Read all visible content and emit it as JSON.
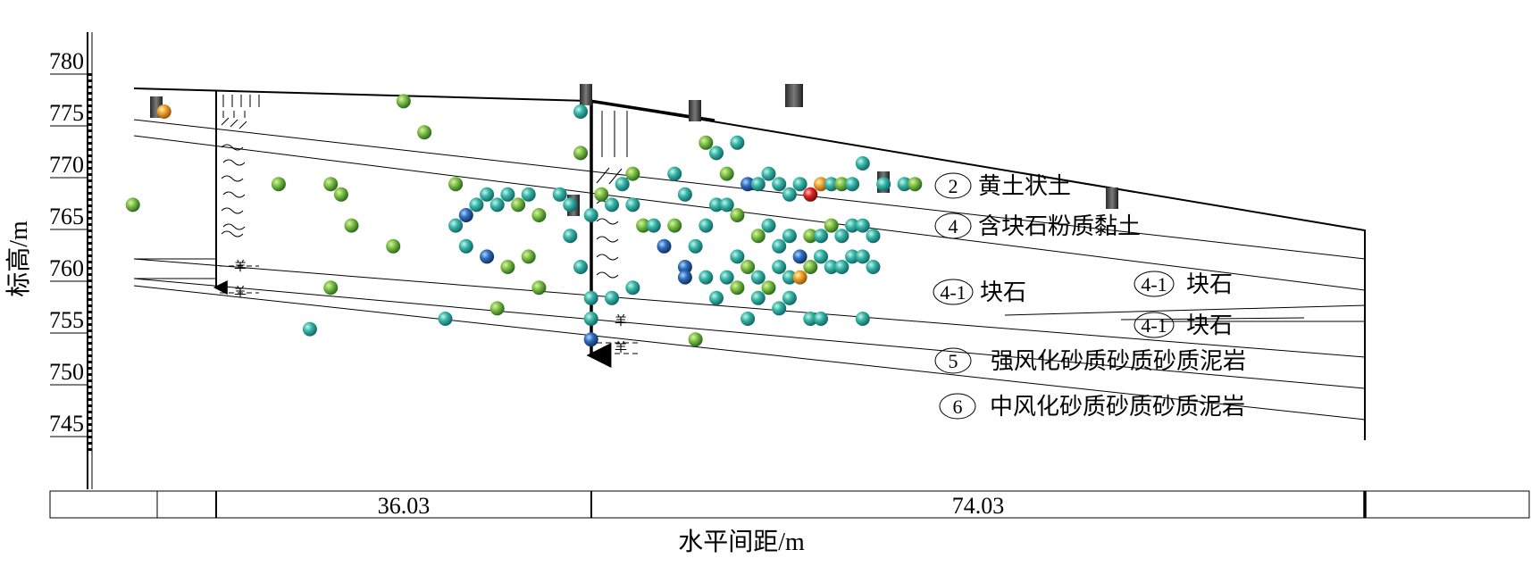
{
  "chart_data": {
    "type": "scatter",
    "ylabel": "标高/m",
    "xlabel": "水平间距/m",
    "yticks": [
      780,
      775,
      770,
      765,
      760,
      755,
      750,
      745
    ],
    "ylim": [
      740,
      782
    ],
    "distances": [
      {
        "label": "36.03",
        "from": 0,
        "to": 36.03
      },
      {
        "label": "74.03",
        "from": 36.03,
        "to": 110.06
      }
    ],
    "layers": [
      {
        "code": "2",
        "label": "黄土状土"
      },
      {
        "code": "4",
        "label": "含块石粉质黏土"
      },
      {
        "code": "4-1",
        "label": "块石"
      },
      {
        "code": "4-1",
        "label": "块石"
      },
      {
        "code": "4-1",
        "label": "块石"
      },
      {
        "code": "5",
        "label": "强风化砂质砂质砂质泥岩"
      },
      {
        "code": "6",
        "label": "中风化砂质砂质砂质泥岩"
      }
    ],
    "points": [
      [
        -8,
        766,
        "g"
      ],
      [
        -5,
        775,
        "o"
      ],
      [
        18,
        776,
        "g"
      ],
      [
        20,
        773,
        "g"
      ],
      [
        6,
        768,
        "g"
      ],
      [
        11,
        768,
        "g"
      ],
      [
        12,
        767,
        "g"
      ],
      [
        13,
        764,
        "g"
      ],
      [
        17,
        762,
        "g"
      ],
      [
        11,
        758,
        "g"
      ],
      [
        9,
        754,
        "c"
      ],
      [
        23,
        768,
        "g"
      ],
      [
        23,
        764,
        "c"
      ],
      [
        24,
        765,
        "b"
      ],
      [
        25,
        766,
        "c"
      ],
      [
        26,
        767,
        "c"
      ],
      [
        27,
        766,
        "c"
      ],
      [
        28,
        767,
        "c"
      ],
      [
        29,
        766,
        "g"
      ],
      [
        30,
        767,
        "c"
      ],
      [
        31,
        765,
        "g"
      ],
      [
        24,
        762,
        "c"
      ],
      [
        26,
        761,
        "b"
      ],
      [
        28,
        760,
        "g"
      ],
      [
        30,
        761,
        "g"
      ],
      [
        31,
        758,
        "g"
      ],
      [
        22,
        755,
        "c"
      ],
      [
        27,
        756,
        "g"
      ],
      [
        33,
        767,
        "c"
      ],
      [
        34,
        766,
        "c"
      ],
      [
        34,
        763,
        "c"
      ],
      [
        35,
        760,
        "c"
      ],
      [
        35,
        775,
        "c"
      ],
      [
        35,
        771,
        "g"
      ],
      [
        36,
        753,
        "b"
      ],
      [
        36,
        765,
        "c"
      ],
      [
        37,
        767,
        "g"
      ],
      [
        38,
        766,
        "c"
      ],
      [
        39,
        768,
        "c"
      ],
      [
        40,
        766,
        "c"
      ],
      [
        41,
        764,
        "g"
      ],
      [
        42,
        764,
        "c"
      ],
      [
        43,
        762,
        "b"
      ],
      [
        44,
        764,
        "g"
      ],
      [
        45,
        760,
        "b"
      ],
      [
        46,
        762,
        "c"
      ],
      [
        47,
        764,
        "c"
      ],
      [
        48,
        766,
        "c"
      ],
      [
        36,
        757,
        "c"
      ],
      [
        36,
        755,
        "c"
      ],
      [
        38,
        757,
        "c"
      ],
      [
        40,
        758,
        "c"
      ],
      [
        45,
        759,
        "b"
      ],
      [
        46,
        753,
        "g"
      ],
      [
        47,
        759,
        "c"
      ],
      [
        47,
        772,
        "g"
      ],
      [
        48,
        771,
        "c"
      ],
      [
        49,
        769,
        "g"
      ],
      [
        50,
        772,
        "c"
      ],
      [
        51,
        768,
        "b"
      ],
      [
        52,
        768,
        "c"
      ],
      [
        53,
        769,
        "c"
      ],
      [
        54,
        768,
        "c"
      ],
      [
        55,
        767,
        "c"
      ],
      [
        56,
        768,
        "c"
      ],
      [
        57,
        767,
        "r"
      ],
      [
        58,
        768,
        "o"
      ],
      [
        59,
        768,
        "c"
      ],
      [
        60,
        768,
        "g"
      ],
      [
        61,
        768,
        "c"
      ],
      [
        62,
        770,
        "c"
      ],
      [
        64,
        768,
        "c"
      ],
      [
        49,
        766,
        "c"
      ],
      [
        50,
        765,
        "g"
      ],
      [
        52,
        763,
        "g"
      ],
      [
        53,
        764,
        "c"
      ],
      [
        54,
        762,
        "c"
      ],
      [
        55,
        763,
        "c"
      ],
      [
        56,
        761,
        "b"
      ],
      [
        57,
        763,
        "g"
      ],
      [
        58,
        763,
        "c"
      ],
      [
        59,
        764,
        "g"
      ],
      [
        60,
        763,
        "c"
      ],
      [
        61,
        764,
        "c"
      ],
      [
        62,
        764,
        "c"
      ],
      [
        63,
        763,
        "c"
      ],
      [
        50,
        761,
        "c"
      ],
      [
        51,
        760,
        "g"
      ],
      [
        52,
        759,
        "c"
      ],
      [
        54,
        760,
        "c"
      ],
      [
        55,
        759,
        "c"
      ],
      [
        56,
        759,
        "o"
      ],
      [
        57,
        760,
        "g"
      ],
      [
        58,
        761,
        "c"
      ],
      [
        59,
        760,
        "c"
      ],
      [
        60,
        760,
        "c"
      ],
      [
        61,
        761,
        "c"
      ],
      [
        62,
        761,
        "c"
      ],
      [
        63,
        760,
        "c"
      ],
      [
        49,
        759,
        "c"
      ],
      [
        48,
        757,
        "c"
      ],
      [
        50,
        758,
        "g"
      ],
      [
        52,
        757,
        "c"
      ],
      [
        53,
        758,
        "g"
      ],
      [
        55,
        757,
        "c"
      ],
      [
        51,
        755,
        "c"
      ],
      [
        54,
        756,
        "c"
      ],
      [
        57,
        755,
        "c"
      ],
      [
        58,
        755,
        "c"
      ],
      [
        62,
        755,
        "c"
      ],
      [
        66,
        768,
        "c"
      ],
      [
        67,
        768,
        "g"
      ],
      [
        44,
        769,
        "c"
      ],
      [
        45,
        767,
        "c"
      ],
      [
        40,
        769,
        "g"
      ]
    ]
  }
}
